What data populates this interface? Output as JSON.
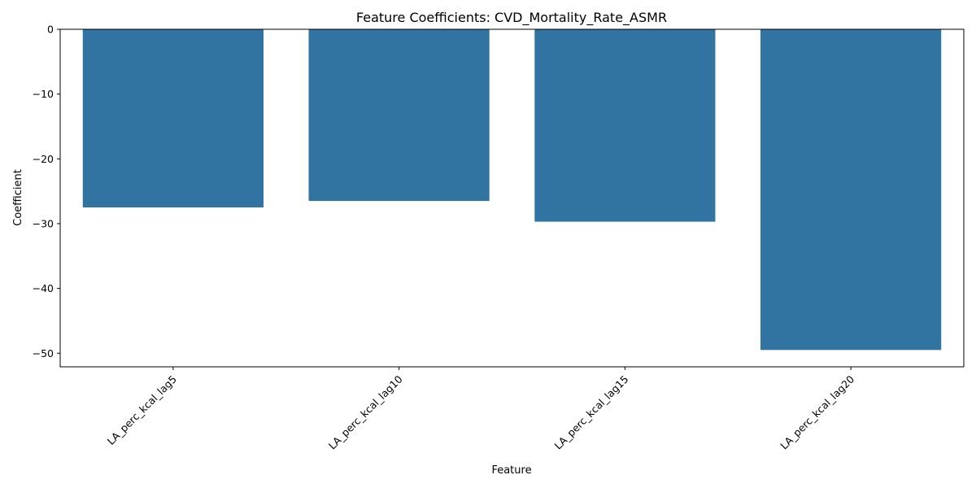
{
  "chart_data": {
    "type": "bar",
    "title": "Feature Coefficients: CVD_Mortality_Rate_ASMR",
    "xlabel": "Feature",
    "ylabel": "Coefficient",
    "categories": [
      "LA_perc_kcal_lag5",
      "LA_perc_kcal_lag10",
      "LA_perc_kcal_lag15",
      "LA_perc_kcal_lag20"
    ],
    "values": [
      -27.5,
      -26.5,
      -29.7,
      -49.5
    ],
    "ylim": [
      -52.1,
      0
    ],
    "yticks": [
      0,
      -10,
      -20,
      -30,
      -40,
      -50
    ],
    "ytick_labels": [
      "0",
      "−10",
      "−20",
      "−30",
      "−40",
      "−50"
    ],
    "bar_color": "#3274a1",
    "grid": false,
    "legend": "none"
  }
}
